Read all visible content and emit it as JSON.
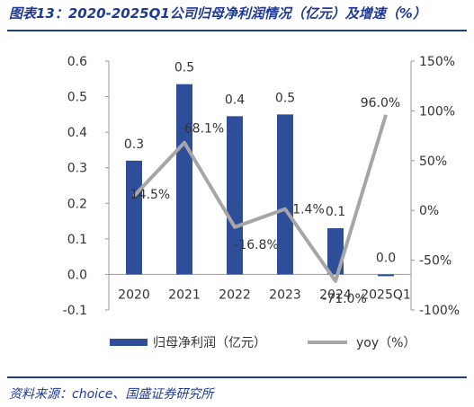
{
  "header": {
    "title": "图表13：2020-2025Q1公司归母净利润情况（亿元）及增速（%）"
  },
  "footer": {
    "source": "资料来源：choice、国盛证券研究所"
  },
  "colors": {
    "bar": "#2E4E9A",
    "line": "#A6A6A6",
    "brand": "#1F3A93"
  },
  "chart_data": {
    "type": "bar",
    "categories": [
      "2020",
      "2021",
      "2022",
      "2023",
      "2024",
      "2025Q1"
    ],
    "series": [
      {
        "name": "归母净利润（亿元）",
        "type": "bar",
        "axis": "left",
        "values": [
          0.32,
          0.535,
          0.445,
          0.45,
          0.13,
          -0.005
        ],
        "labels": [
          "0.3",
          "0.5",
          "0.4",
          "0.5",
          "0.1",
          "0.0"
        ]
      },
      {
        "name": "yoy（%）",
        "type": "line",
        "axis": "right",
        "values": [
          14.5,
          68.1,
          -16.8,
          1.4,
          -71.0,
          96.0
        ],
        "labels": [
          "14.5%",
          "68.1%",
          "-16.8%",
          "1.4%",
          "-71.0%",
          "96.0%"
        ]
      }
    ],
    "y_left": {
      "ylim": [
        -0.1,
        0.6
      ],
      "ticks": [
        "0.6",
        "0.5",
        "0.4",
        "0.3",
        "0.2",
        "0.1",
        "0.0",
        "-0.1"
      ]
    },
    "y_right": {
      "ylim": [
        -100,
        150
      ],
      "ticks": [
        "150%",
        "100%",
        "50%",
        "0%",
        "-50%",
        "-100%"
      ]
    },
    "legend": {
      "placement": "bottom",
      "items": [
        "归母净利润（亿元）",
        "yoy（%）"
      ]
    }
  }
}
